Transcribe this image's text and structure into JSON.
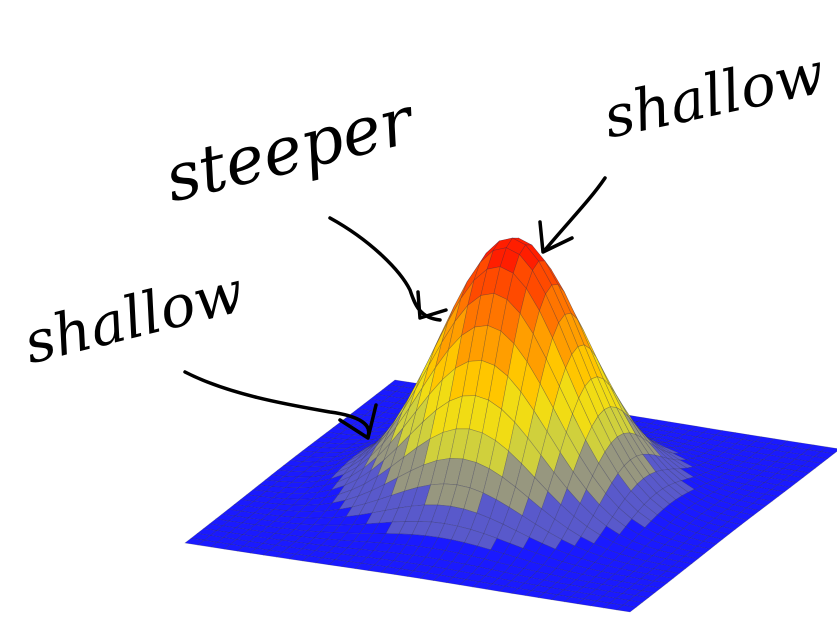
{
  "annotations": [
    {
      "label": "steeper"
    },
    {
      "label": "shallow"
    },
    {
      "label": "shallow"
    }
  ]
}
